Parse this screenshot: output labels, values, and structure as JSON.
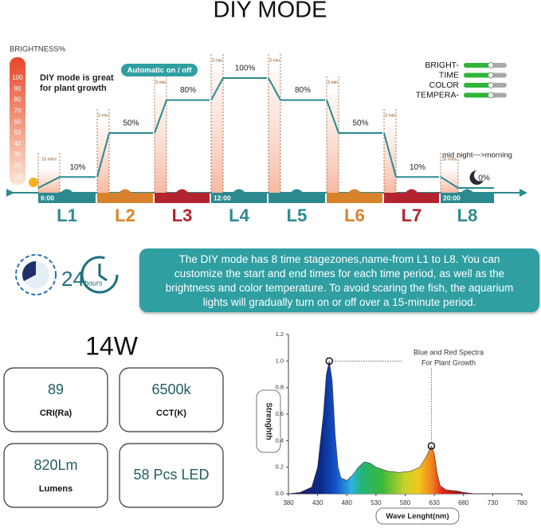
{
  "title": "DIY MODE",
  "schedule": {
    "axis_label": "BRIGHTNESS%",
    "brightness_ticks": [
      10,
      20,
      30,
      40,
      50,
      60,
      70,
      80,
      90,
      100
    ],
    "note": [
      "DIY mode is great",
      "for plant growth"
    ],
    "auto_badge": "Automatic on / off",
    "settings": [
      "BRIGHT-",
      "TIME",
      "COLOR",
      "TEMPERA-"
    ],
    "stages": [
      "L1",
      "L2",
      "L3",
      "L4",
      "L5",
      "L6",
      "L7",
      "L8"
    ],
    "stage_colors": [
      "#2b8a90",
      "#d8832c",
      "#b3242f",
      "#2b8a90",
      "#2b8a90",
      "#d8832c",
      "#b3242f",
      "#2b8a90"
    ],
    "levels": [
      10,
      50,
      80,
      100,
      80,
      50,
      10,
      0
    ],
    "level_labels": [
      "10%",
      "50%",
      "80%",
      "100%",
      "80%",
      "50%",
      "10%",
      "0%"
    ],
    "times": [
      "6:00",
      null,
      null,
      "12:00",
      null,
      null,
      null,
      "20:00"
    ],
    "ramps": [
      "15 mins",
      "3 min",
      "3 min",
      "3 min",
      "3 min",
      "3 min",
      "3 min",
      "15 mins"
    ],
    "night_note": "mid night--->morning"
  },
  "description": [
    "The DIY mode has 8 time stagezones,name-from L1 to L8. You can",
    "customize the start and end times for each time period, as well as the",
    "brightness and color temperature. To avoid scaring the fish, the aquarium",
    "lights will gradually turn on or off over a 15-minute period."
  ],
  "cycle": {
    "number": "24",
    "unit": "hours"
  },
  "power": "14W",
  "specs": [
    {
      "value": "89",
      "label": "CRI(Ra)"
    },
    {
      "value": "6500k",
      "label": "CCT(K)"
    },
    {
      "value": "820Lm",
      "label": "Lumens"
    },
    {
      "value": "58 Pcs LED"
    }
  ],
  "spectrum": {
    "type": "area",
    "ylabel": "Strenghth",
    "xlabel": "Wave Lenght(nm)",
    "annotation": [
      "Blue and Red Spectra",
      "For Plant Growth"
    ],
    "x": [
      380,
      400,
      420,
      430,
      440,
      445,
      450,
      455,
      460,
      465,
      470,
      480,
      490,
      500,
      510,
      520,
      530,
      550,
      570,
      590,
      605,
      615,
      625,
      630,
      635,
      640,
      650,
      670,
      680,
      700,
      780
    ],
    "values": [
      0,
      0.01,
      0.05,
      0.2,
      0.6,
      0.9,
      1.0,
      0.85,
      0.45,
      0.2,
      0.12,
      0.1,
      0.14,
      0.2,
      0.24,
      0.23,
      0.2,
      0.17,
      0.16,
      0.17,
      0.2,
      0.27,
      0.36,
      0.3,
      0.15,
      0.06,
      0.03,
      0.02,
      0.01,
      0,
      0
    ],
    "xlim": [
      380,
      780
    ],
    "xticks": [
      380,
      430,
      480,
      530,
      580,
      630,
      680,
      730,
      780
    ],
    "ylim": [
      0,
      1.2
    ],
    "yticks": [
      {
        "value": 0,
        "label": "0.0"
      },
      {
        "value": 0.2,
        "label": "0.2"
      },
      {
        "value": 0.4,
        "label": "0.4"
      },
      {
        "value": 0.6,
        "label": "0.6"
      },
      {
        "value": 0.8,
        "label": "0.8"
      },
      {
        "value": 1.0,
        "label": "1.0"
      },
      {
        "value": 1.2,
        "label": "1.2"
      }
    ]
  }
}
